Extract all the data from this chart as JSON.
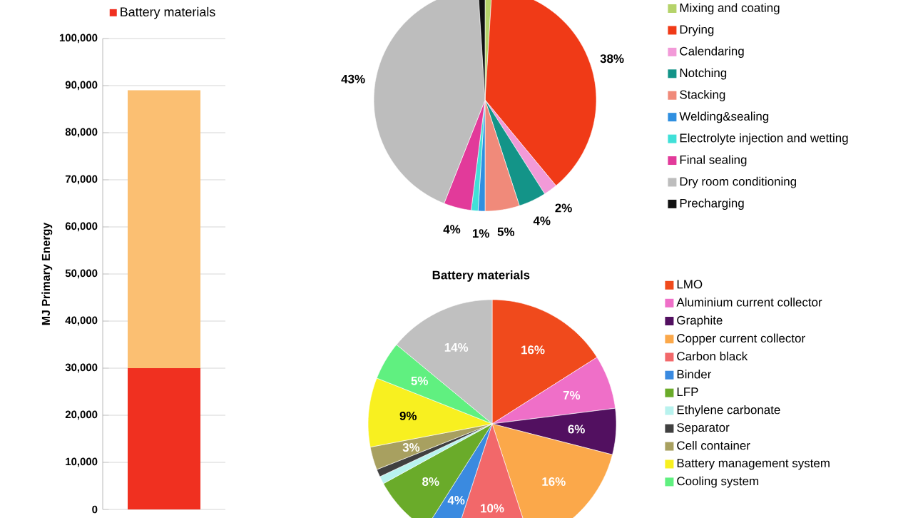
{
  "chart_data": [
    {
      "type": "bar",
      "stacked": true,
      "categories": [
        null
      ],
      "ylabel": "MJ Primary Energy",
      "grid": "y",
      "legend": "top",
      "ylim": [
        0,
        100000
      ],
      "yticks": [
        0,
        {
          "value": 10000,
          "label": "10,000"
        },
        {
          "value": 20000,
          "label": "20,000"
        },
        {
          "value": 30000,
          "label": "30,000"
        },
        {
          "value": 40000,
          "label": "40,000"
        },
        {
          "value": 50000,
          "label": "50,000"
        },
        {
          "value": 60000,
          "label": "60,000"
        },
        {
          "value": 70000,
          "label": "70,000"
        },
        {
          "value": 80000,
          "label": "80,000"
        },
        {
          "value": 90000,
          "label": "90,000"
        },
        {
          "value": 100000,
          "label": "100,000"
        }
      ],
      "series": [
        {
          "name": "Battery materials",
          "color": "#f03020",
          "values": [
            30000
          ]
        },
        {
          "color": "#fbbf72",
          "values": [
            59000
          ]
        }
      ]
    },
    {
      "type": "pie",
      "legend": "right",
      "categories": [
        "Mixing and coating",
        "Drying",
        "Calendaring",
        "Notching",
        "Stacking",
        "Welding&sealing",
        "Electrolyte injection and wetting",
        "Final sealing",
        "Dry room conditioning",
        "Precharging"
      ],
      "values": [
        1,
        38,
        2,
        4,
        5,
        1,
        1,
        4,
        43,
        1
      ],
      "value_labels": [
        null,
        "38%",
        "2%",
        "4%",
        "5%",
        "1%",
        null,
        "4%",
        "43%",
        null
      ],
      "colors": [
        "#b5d36a",
        "#f03a17",
        "#f29ad8",
        "#139488",
        "#f08a7a",
        "#2f8fe0",
        "#40e0d8",
        "#e23a9a",
        "#bdbdbd",
        "#111111"
      ]
    },
    {
      "type": "pie",
      "title": "Battery materials",
      "legend": "right",
      "categories": [
        "LMO",
        "Aluminium current collector",
        "Graphite",
        "Copper current collector",
        "Carbon black",
        "Binder",
        "LFP",
        "Ethylene carbonate",
        "Separator",
        "Cell container",
        "Battery management system",
        "Cooling system",
        null
      ],
      "values": [
        16,
        7,
        6,
        16,
        10,
        4,
        8,
        1,
        1,
        3,
        9,
        5,
        14
      ],
      "value_labels": [
        "16%",
        "7%",
        "6%",
        "16%",
        "10%",
        "4%",
        "8%",
        null,
        null,
        "3%",
        "9%",
        "5%",
        "14%"
      ],
      "colors": [
        "#f04a1c",
        "#ef6fc8",
        "#521060",
        "#fba84a",
        "#f2686a",
        "#3a8ae0",
        "#6aab2a",
        "#b8f2ee",
        "#404040",
        "#a8a060",
        "#f8f020",
        "#60f080",
        "#c0c0c0"
      ]
    }
  ]
}
